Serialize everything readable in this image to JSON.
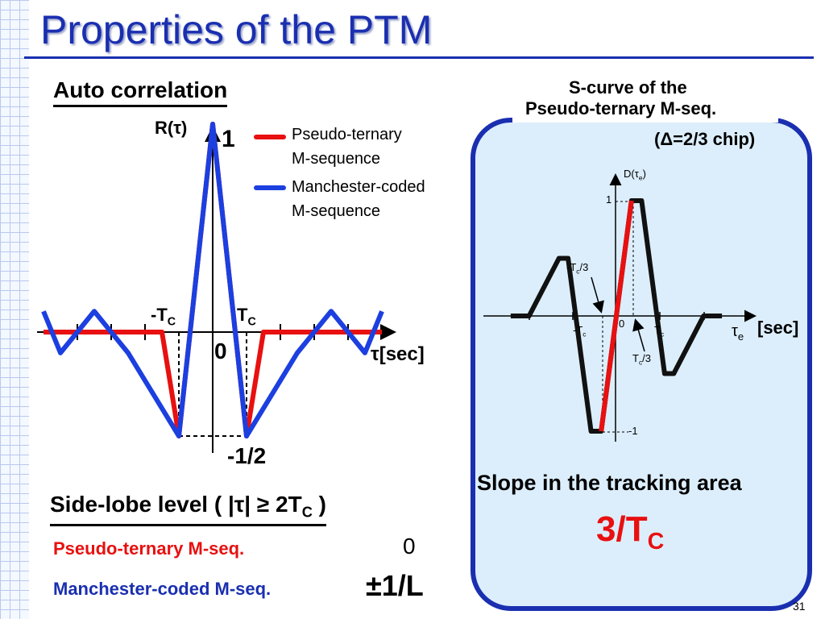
{
  "slide": {
    "title": "Properties of the PTM",
    "page_number": "31"
  },
  "left": {
    "heading": "Auto correlation",
    "y_axis_label": "R(τ)",
    "peak_label": "1",
    "legend": [
      {
        "label_line1": "Pseudo-ternary",
        "label_line2": "M-sequence",
        "color": "#e81010"
      },
      {
        "label_line1": "Manchester-coded",
        "label_line2": "M-sequence",
        "color": "#1c3fe0"
      }
    ],
    "neg_tc_label": "-T",
    "pos_tc_label": "T",
    "tc_sub": "C",
    "origin_label": "0",
    "x_axis_label": "τ[sec]",
    "min_label": "-1/2"
  },
  "sidelobe": {
    "heading_prefix": "Side-lobe level ( |τ| ≥ 2T",
    "heading_sub": "C",
    "heading_suffix": " )",
    "rows": [
      {
        "name": "Pseudo-ternary M-seq.",
        "value": "0",
        "color": "#e81010"
      },
      {
        "name": "Manchester-coded M-seq.",
        "value": "±1/L",
        "color": "#1a2fb0"
      }
    ]
  },
  "right": {
    "caption_line1": "S-curve of the",
    "caption_line2": "Pseudo-ternary M-seq.",
    "caption_line3": "(Δ=2/3 chip)",
    "y_axis_label": "D(τ",
    "y_axis_sub": "e",
    "y_axis_close": ")",
    "tick_1": "1",
    "tick_neg1": "-1",
    "origin": "0",
    "neg_tc3_label": "-T",
    "neg_tc3_tail": "/3",
    "pos_tc3_label": "T",
    "pos_tc3_tail": "/3",
    "neg_tc": "-T",
    "pos_tc": "T",
    "c_sub": "c",
    "x_axis_tau": "τ",
    "x_axis_sub": "e",
    "x_axis_unit": "[sec]",
    "slope_heading": "Slope in the tracking area",
    "slope_value": "3/T",
    "slope_sub": "C"
  },
  "chart_data": [
    {
      "type": "line",
      "title": "Auto correlation",
      "xlabel": "τ[sec]",
      "ylabel": "R(τ)",
      "x_units": "chips (T_C)",
      "series": [
        {
          "name": "Pseudo-ternary M-sequence",
          "color": "#e81010",
          "x": [
            -5,
            -1.5,
            -1,
            0,
            1,
            1.5,
            5
          ],
          "y": [
            0,
            0,
            -0.5,
            1,
            -0.5,
            0,
            0
          ]
        },
        {
          "name": "Manchester-coded M-sequence",
          "color": "#1c3fe0",
          "x": [
            -5,
            -4.5,
            -3.5,
            -2.5,
            -1,
            0,
            1,
            2.5,
            3.5,
            4.5,
            5
          ],
          "y": [
            0.1,
            -0.1,
            0.1,
            -0.1,
            -0.5,
            1,
            -0.5,
            -0.1,
            0.1,
            -0.1,
            0.1
          ]
        }
      ],
      "ylim": [
        -0.5,
        1
      ]
    },
    {
      "type": "line",
      "title": "S-curve of the Pseudo-ternary M-seq. (Δ=2/3 chip)",
      "xlabel": "τe [sec]",
      "ylabel": "D(τe)",
      "series": [
        {
          "name": "S-curve",
          "color": "#111111",
          "x": [
            -2.3,
            -1.9,
            -1.25,
            -1.05,
            -0.55,
            -0.33,
            0.33,
            0.55,
            1.05,
            1.25,
            1.9,
            2.3
          ],
          "y": [
            0,
            0,
            0.5,
            0.5,
            -1,
            -1,
            1,
            1,
            -0.5,
            -0.5,
            0,
            0
          ]
        },
        {
          "name": "Tracking area",
          "color": "#e81010",
          "x": [
            -0.33,
            0.33
          ],
          "y": [
            -1,
            1
          ]
        }
      ],
      "ylim": [
        -1,
        1
      ]
    }
  ]
}
